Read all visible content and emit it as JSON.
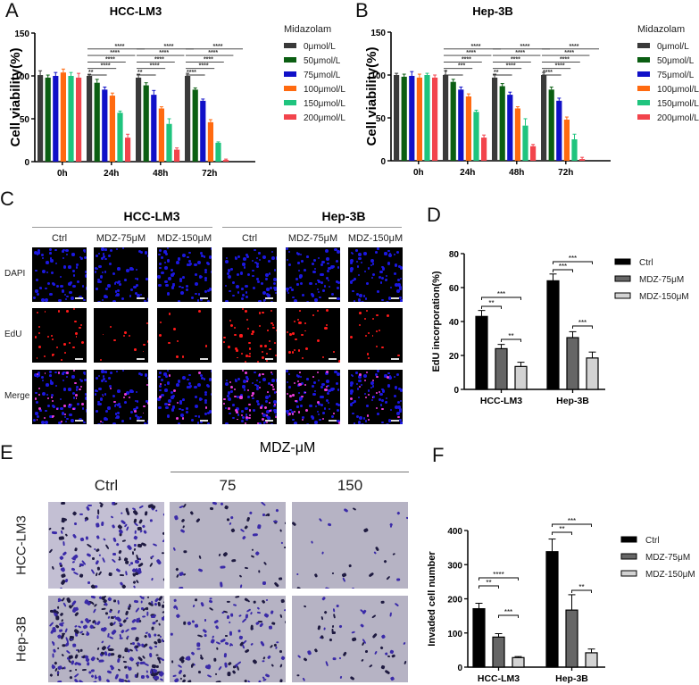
{
  "panels": {
    "A": {
      "letter": "A"
    },
    "B": {
      "letter": "B"
    },
    "C": {
      "letter": "C",
      "groups": [
        "HCC-LM3",
        "Hep-3B"
      ],
      "columns": [
        "Ctrl",
        "MDZ-75μM",
        "MDZ-150μM",
        "Ctrl",
        "MDZ-75μM",
        "MDZ-150μM"
      ],
      "rows": [
        "DAPI",
        "EdU",
        "Merge"
      ]
    },
    "D": {
      "letter": "D"
    },
    "E": {
      "letter": "E",
      "header": "MDZ-μM",
      "columns": [
        "Ctrl",
        "75",
        "150"
      ],
      "rows": [
        "HCC-LM3",
        "Hep-3B"
      ]
    },
    "F": {
      "letter": "F"
    }
  },
  "chart_data": [
    {
      "id": "A",
      "type": "bar",
      "title": "HCC-LM3",
      "xlabel": "",
      "ylabel": "Cell viability(%)",
      "ylim": [
        0,
        150
      ],
      "yticks": [
        0,
        50,
        100,
        150
      ],
      "categories": [
        "0h",
        "24h",
        "48h",
        "72h"
      ],
      "legend_title": "Midazolam",
      "series": [
        {
          "name": "0μmol/L",
          "color": "#3a3a3a",
          "values": [
            101,
            100,
            98,
            100
          ],
          "errors": [
            5,
            2,
            4,
            3
          ]
        },
        {
          "name": "50μmol/L",
          "color": "#0b5e12",
          "values": [
            98,
            92,
            89,
            84
          ],
          "errors": [
            3,
            4,
            3,
            2
          ]
        },
        {
          "name": "75μmol/L",
          "color": "#1010c8",
          "values": [
            100,
            84,
            78,
            71
          ],
          "errors": [
            4,
            3,
            5,
            2
          ]
        },
        {
          "name": "100μmol/L",
          "color": "#ff6a10",
          "values": [
            104,
            77,
            62,
            46
          ],
          "errors": [
            4,
            3,
            2,
            3
          ]
        },
        {
          "name": "150μmol/L",
          "color": "#1fc47e",
          "values": [
            100,
            57,
            44,
            22
          ],
          "errors": [
            4,
            2,
            6,
            1
          ]
        },
        {
          "name": "200μmol/L",
          "color": "#f2444c",
          "values": [
            98,
            28,
            14,
            2
          ],
          "errors": [
            5,
            4,
            2,
            1
          ]
        }
      ],
      "significance": {
        "24h": [
          "**",
          "****",
          "****",
          "****",
          "****"
        ],
        "48h": [
          "**",
          "****",
          "****",
          "****",
          "****"
        ],
        "72h": [
          "****",
          "****",
          "****",
          "****",
          "****"
        ]
      }
    },
    {
      "id": "B",
      "type": "bar",
      "title": "Hep-3B",
      "xlabel": "",
      "ylabel": "Cell viability(%)",
      "ylim": [
        0,
        150
      ],
      "yticks": [
        0,
        50,
        100,
        150
      ],
      "categories": [
        "0h",
        "24h",
        "48h",
        "72h"
      ],
      "legend_title": "Midazolam",
      "series": [
        {
          "name": "0μmol/L",
          "color": "#3a3a3a",
          "values": [
            100,
            100,
            97,
            100
          ],
          "errors": [
            2,
            5,
            4,
            3
          ]
        },
        {
          "name": "50μmol/L",
          "color": "#0b5e12",
          "values": [
            98,
            92,
            87,
            83
          ],
          "errors": [
            3,
            3,
            3,
            3
          ]
        },
        {
          "name": "75μmol/L",
          "color": "#1010c8",
          "values": [
            99,
            83,
            77,
            70
          ],
          "errors": [
            5,
            3,
            3,
            3
          ]
        },
        {
          "name": "100μmol/L",
          "color": "#ff6a10",
          "values": [
            97,
            75,
            61,
            48
          ],
          "errors": [
            4,
            3,
            2,
            3
          ]
        },
        {
          "name": "150μmol/L",
          "color": "#1fc47e",
          "values": [
            100,
            57,
            41,
            25
          ],
          "errors": [
            2,
            2,
            8,
            6
          ]
        },
        {
          "name": "200μmol/L",
          "color": "#f2444c",
          "values": [
            97,
            27,
            17,
            2
          ],
          "errors": [
            3,
            3,
            2,
            2
          ]
        }
      ],
      "significance": {
        "24h": [
          "*",
          "***",
          "****",
          "****",
          "****"
        ],
        "48h": [
          "**",
          "****",
          "****",
          "****",
          "****"
        ],
        "72h": [
          "****",
          "****",
          "****",
          "****",
          "****"
        ]
      }
    },
    {
      "id": "D",
      "type": "bar",
      "title": "",
      "xlabel": "",
      "ylabel": "EdU incorporation(%)",
      "ylim": [
        0,
        80
      ],
      "yticks": [
        0,
        20,
        40,
        60,
        80
      ],
      "categories": [
        "HCC-LM3",
        "Hep-3B"
      ],
      "series": [
        {
          "name": "Ctrl",
          "color": "#000000",
          "values": [
            43,
            64
          ],
          "errors": [
            3.5,
            4
          ]
        },
        {
          "name": "MDZ-75μM",
          "color": "#666666",
          "values": [
            24,
            30.5
          ],
          "errors": [
            2.5,
            3.5
          ]
        },
        {
          "name": "MDZ-150μM",
          "color": "#d3d3d3",
          "values": [
            13.5,
            18.5
          ],
          "errors": [
            2.5,
            3.5
          ]
        }
      ],
      "significance": [
        {
          "group": "HCC-LM3",
          "pair": [
            "Ctrl",
            "MDZ-75μM"
          ],
          "label": "**"
        },
        {
          "group": "HCC-LM3",
          "pair": [
            "Ctrl",
            "MDZ-150μM"
          ],
          "label": "***"
        },
        {
          "group": "HCC-LM3",
          "pair": [
            "MDZ-75μM",
            "MDZ-150μM"
          ],
          "label": "**"
        },
        {
          "group": "Hep-3B",
          "pair": [
            "Ctrl",
            "MDZ-75μM"
          ],
          "label": "***"
        },
        {
          "group": "Hep-3B",
          "pair": [
            "Ctrl",
            "MDZ-150μM"
          ],
          "label": "***"
        },
        {
          "group": "Hep-3B",
          "pair": [
            "MDZ-75μM",
            "MDZ-150μM"
          ],
          "label": "***"
        }
      ]
    },
    {
      "id": "F",
      "type": "bar",
      "title": "",
      "xlabel": "",
      "ylabel": "Invaded cell number",
      "ylim": [
        0,
        400
      ],
      "yticks": [
        0,
        100,
        200,
        300,
        400
      ],
      "categories": [
        "HCC-LM3",
        "Hep-3B"
      ],
      "series": [
        {
          "name": "Ctrl",
          "color": "#000000",
          "values": [
            171,
            338
          ],
          "errors": [
            16,
            37
          ]
        },
        {
          "name": "MDZ-75μM",
          "color": "#666666",
          "values": [
            88,
            167
          ],
          "errors": [
            10,
            45
          ]
        },
        {
          "name": "MDZ-150μM",
          "color": "#d3d3d3",
          "values": [
            28,
            42
          ],
          "errors": [
            3,
            11
          ]
        }
      ],
      "significance": [
        {
          "group": "HCC-LM3",
          "pair": [
            "Ctrl",
            "MDZ-75μM"
          ],
          "label": "**"
        },
        {
          "group": "HCC-LM3",
          "pair": [
            "Ctrl",
            "MDZ-150μM"
          ],
          "label": "****"
        },
        {
          "group": "HCC-LM3",
          "pair": [
            "MDZ-75μM",
            "MDZ-150μM"
          ],
          "label": "***"
        },
        {
          "group": "Hep-3B",
          "pair": [
            "Ctrl",
            "MDZ-75μM"
          ],
          "label": "**"
        },
        {
          "group": "Hep-3B",
          "pair": [
            "Ctrl",
            "MDZ-150μM"
          ],
          "label": "***"
        },
        {
          "group": "Hep-3B",
          "pair": [
            "MDZ-75μM",
            "MDZ-150μM"
          ],
          "label": "**"
        }
      ]
    }
  ]
}
